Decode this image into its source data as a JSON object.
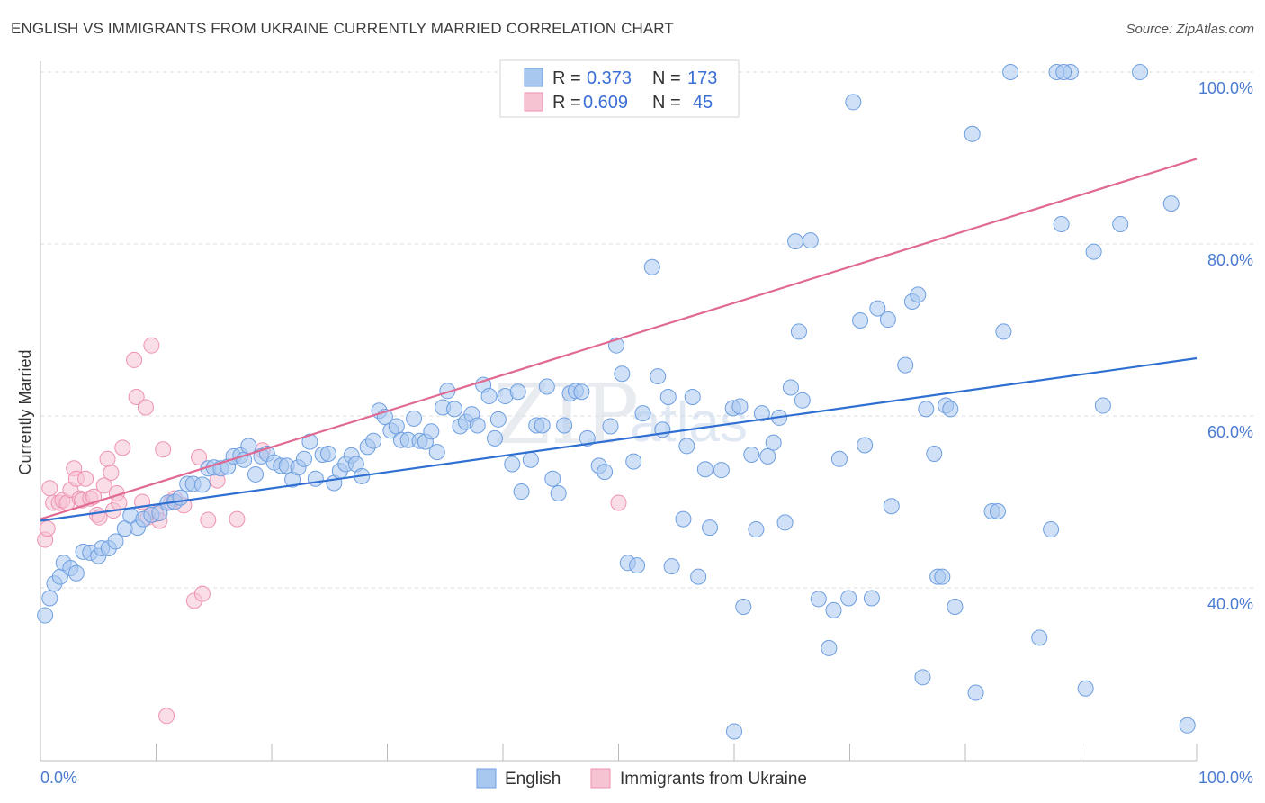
{
  "title": "ENGLISH VS IMMIGRANTS FROM UKRAINE CURRENTLY MARRIED CORRELATION CHART",
  "source": "Source: ZipAtlas.com",
  "watermark": "ZIPatlas",
  "legend_top": {
    "r_label": "R =",
    "n_label": "N =",
    "rows": [
      {
        "series": "English",
        "r": "0.373",
        "n": "173"
      },
      {
        "series": "Immigrants from Ukraine",
        "r": "0.609",
        "n": "45"
      }
    ]
  },
  "colors": {
    "english_fill": "#a9c8f0",
    "english_stroke": "#6d9ee0",
    "english_line": "#2f6fd2",
    "ukraine_fill": "#f6c3d3",
    "ukraine_stroke": "#ee92b0",
    "ukraine_line": "#e06a93",
    "grid": "#dddddd",
    "tick_label": "#4a7bd0"
  },
  "chart_data": {
    "type": "scatter",
    "title": "ENGLISH VS IMMIGRANTS FROM UKRAINE CURRENTLY MARRIED CORRELATION CHART",
    "xlabel": "",
    "ylabel": "Currently Married",
    "xlim": [
      0,
      100
    ],
    "ylim": [
      20,
      100
    ],
    "x_tick_labels": [
      {
        "value": 0,
        "label": "0.0%"
      },
      {
        "value": 100,
        "label": "100.0%"
      }
    ],
    "y_tick_labels": [
      {
        "value": 40,
        "label": "40.0%"
      },
      {
        "value": 60,
        "label": "60.0%"
      },
      {
        "value": 80,
        "label": "80.0%"
      },
      {
        "value": 100,
        "label": "100.0%"
      }
    ],
    "grid": true,
    "legend": "bottom-center",
    "series": [
      {
        "name": "English",
        "trend": {
          "x": [
            0,
            100
          ],
          "y": [
            47.8,
            66.7
          ]
        },
        "points": [
          [
            0.4,
            36.8
          ],
          [
            0.8,
            38.8
          ],
          [
            1.2,
            40.5
          ],
          [
            1.7,
            41.3
          ],
          [
            2.0,
            42.9
          ],
          [
            2.6,
            42.3
          ],
          [
            3.1,
            41.7
          ],
          [
            3.7,
            44.2
          ],
          [
            4.3,
            44.1
          ],
          [
            5.0,
            43.7
          ],
          [
            5.3,
            44.6
          ],
          [
            5.9,
            44.6
          ],
          [
            6.5,
            45.4
          ],
          [
            7.3,
            46.9
          ],
          [
            7.8,
            48.4
          ],
          [
            8.4,
            47.0
          ],
          [
            8.9,
            48.0
          ],
          [
            9.6,
            48.5
          ],
          [
            10.3,
            48.7
          ],
          [
            11.0,
            49.9
          ],
          [
            11.6,
            50.0
          ],
          [
            12.1,
            50.5
          ],
          [
            12.7,
            52.1
          ],
          [
            13.2,
            52.1
          ],
          [
            14.0,
            52.0
          ],
          [
            14.5,
            53.9
          ],
          [
            15.0,
            54.0
          ],
          [
            15.6,
            53.9
          ],
          [
            16.2,
            54.1
          ],
          [
            16.7,
            55.3
          ],
          [
            17.3,
            55.4
          ],
          [
            17.6,
            54.9
          ],
          [
            18.0,
            56.5
          ],
          [
            18.6,
            53.2
          ],
          [
            19.1,
            55.3
          ],
          [
            19.6,
            55.6
          ],
          [
            20.2,
            54.6
          ],
          [
            20.8,
            54.2
          ],
          [
            21.3,
            54.2
          ],
          [
            21.8,
            52.6
          ],
          [
            22.3,
            54.0
          ],
          [
            22.8,
            55.0
          ],
          [
            23.3,
            57.0
          ],
          [
            23.8,
            52.7
          ],
          [
            24.4,
            55.5
          ],
          [
            24.9,
            55.6
          ],
          [
            25.4,
            52.2
          ],
          [
            25.9,
            53.6
          ],
          [
            26.4,
            54.4
          ],
          [
            26.9,
            55.4
          ],
          [
            27.3,
            54.4
          ],
          [
            27.8,
            53.0
          ],
          [
            28.3,
            56.4
          ],
          [
            28.8,
            57.1
          ],
          [
            29.3,
            60.6
          ],
          [
            29.8,
            59.9
          ],
          [
            30.3,
            58.3
          ],
          [
            30.8,
            58.8
          ],
          [
            31.2,
            57.2
          ],
          [
            31.8,
            57.2
          ],
          [
            32.3,
            59.7
          ],
          [
            32.8,
            57.1
          ],
          [
            33.3,
            57.0
          ],
          [
            33.8,
            58.2
          ],
          [
            34.3,
            55.8
          ],
          [
            34.8,
            61.0
          ],
          [
            35.2,
            62.9
          ],
          [
            35.8,
            60.8
          ],
          [
            36.3,
            58.8
          ],
          [
            36.8,
            59.3
          ],
          [
            37.3,
            60.2
          ],
          [
            37.8,
            58.9
          ],
          [
            38.3,
            63.6
          ],
          [
            38.8,
            62.3
          ],
          [
            39.3,
            57.4
          ],
          [
            39.6,
            59.6
          ],
          [
            40.2,
            62.3
          ],
          [
            40.8,
            54.4
          ],
          [
            41.3,
            62.8
          ],
          [
            41.6,
            51.2
          ],
          [
            42.4,
            54.9
          ],
          [
            42.9,
            58.9
          ],
          [
            43.4,
            58.9
          ],
          [
            43.8,
            63.4
          ],
          [
            44.3,
            52.7
          ],
          [
            44.8,
            51.0
          ],
          [
            45.3,
            58.9
          ],
          [
            45.8,
            62.6
          ],
          [
            46.3,
            62.9
          ],
          [
            46.8,
            62.8
          ],
          [
            47.3,
            57.4
          ],
          [
            48.3,
            54.2
          ],
          [
            48.8,
            53.5
          ],
          [
            49.3,
            58.8
          ],
          [
            49.8,
            68.2
          ],
          [
            50.3,
            64.9
          ],
          [
            50.8,
            42.9
          ],
          [
            51.3,
            54.7
          ],
          [
            51.6,
            42.6
          ],
          [
            52.1,
            60.3
          ],
          [
            52.9,
            77.3
          ],
          [
            53.4,
            64.6
          ],
          [
            53.8,
            58.4
          ],
          [
            54.3,
            62.2
          ],
          [
            54.6,
            42.5
          ],
          [
            55.6,
            48.0
          ],
          [
            55.9,
            56.5
          ],
          [
            56.4,
            62.2
          ],
          [
            56.9,
            41.3
          ],
          [
            57.5,
            53.8
          ],
          [
            57.9,
            47.0
          ],
          [
            58.9,
            53.7
          ],
          [
            59.9,
            60.9
          ],
          [
            60.5,
            61.1
          ],
          [
            60.8,
            37.8
          ],
          [
            61.5,
            55.5
          ],
          [
            61.9,
            46.8
          ],
          [
            62.4,
            60.3
          ],
          [
            62.9,
            55.3
          ],
          [
            63.4,
            56.9
          ],
          [
            63.9,
            59.8
          ],
          [
            64.4,
            47.6
          ],
          [
            64.9,
            63.3
          ],
          [
            65.3,
            80.3
          ],
          [
            65.6,
            69.8
          ],
          [
            65.9,
            61.8
          ],
          [
            66.6,
            80.4
          ],
          [
            67.3,
            38.7
          ],
          [
            68.2,
            33.0
          ],
          [
            68.6,
            37.4
          ],
          [
            69.1,
            55.0
          ],
          [
            69.9,
            38.8
          ],
          [
            70.3,
            96.5
          ],
          [
            70.9,
            71.1
          ],
          [
            71.3,
            56.6
          ],
          [
            71.9,
            38.8
          ],
          [
            72.4,
            72.5
          ],
          [
            73.3,
            71.2
          ],
          [
            73.6,
            49.5
          ],
          [
            74.8,
            65.9
          ],
          [
            75.4,
            73.3
          ],
          [
            75.9,
            74.1
          ],
          [
            76.3,
            29.6
          ],
          [
            76.6,
            60.8
          ],
          [
            77.3,
            55.6
          ],
          [
            77.6,
            41.3
          ],
          [
            78.0,
            41.3
          ],
          [
            78.3,
            61.2
          ],
          [
            78.7,
            60.8
          ],
          [
            79.1,
            37.8
          ],
          [
            80.6,
            92.8
          ],
          [
            80.9,
            27.8
          ],
          [
            82.3,
            48.9
          ],
          [
            82.8,
            48.9
          ],
          [
            83.3,
            69.8
          ],
          [
            83.9,
            100.0
          ],
          [
            86.4,
            34.2
          ],
          [
            87.4,
            46.8
          ],
          [
            87.9,
            100.0
          ],
          [
            88.3,
            82.3
          ],
          [
            89.1,
            100.0
          ],
          [
            90.4,
            28.3
          ],
          [
            91.1,
            79.1
          ],
          [
            91.9,
            61.2
          ],
          [
            93.4,
            82.3
          ],
          [
            95.1,
            100.0
          ],
          [
            97.8,
            84.7
          ],
          [
            99.2,
            24.0
          ],
          [
            60.0,
            23.3
          ],
          [
            88.5,
            100.0
          ]
        ]
      },
      {
        "name": "Immigrants from Ukraine",
        "trend": {
          "x": [
            0,
            100
          ],
          "y": [
            48.0,
            89.9
          ]
        },
        "points": [
          [
            0.4,
            45.6
          ],
          [
            0.6,
            46.9
          ],
          [
            0.8,
            51.6
          ],
          [
            1.1,
            49.9
          ],
          [
            1.6,
            49.9
          ],
          [
            1.9,
            50.2
          ],
          [
            2.3,
            49.9
          ],
          [
            2.6,
            51.4
          ],
          [
            2.9,
            53.9
          ],
          [
            3.1,
            52.7
          ],
          [
            3.4,
            50.4
          ],
          [
            3.6,
            50.2
          ],
          [
            3.9,
            52.7
          ],
          [
            4.3,
            50.4
          ],
          [
            4.6,
            50.6
          ],
          [
            4.9,
            48.5
          ],
          [
            5.1,
            48.2
          ],
          [
            5.5,
            51.9
          ],
          [
            5.8,
            55.0
          ],
          [
            6.1,
            53.4
          ],
          [
            6.3,
            49.0
          ],
          [
            6.6,
            51.0
          ],
          [
            6.8,
            49.9
          ],
          [
            7.1,
            56.3
          ],
          [
            8.1,
            66.5
          ],
          [
            8.3,
            62.2
          ],
          [
            8.8,
            50.0
          ],
          [
            9.1,
            61.0
          ],
          [
            9.3,
            48.2
          ],
          [
            9.6,
            68.2
          ],
          [
            10.0,
            48.6
          ],
          [
            10.3,
            47.8
          ],
          [
            10.6,
            56.1
          ],
          [
            10.9,
            25.1
          ],
          [
            11.3,
            50.0
          ],
          [
            11.6,
            50.4
          ],
          [
            12.4,
            49.6
          ],
          [
            13.3,
            38.5
          ],
          [
            13.7,
            55.2
          ],
          [
            14.0,
            39.3
          ],
          [
            14.5,
            47.9
          ],
          [
            15.3,
            52.5
          ],
          [
            17.0,
            48.0
          ],
          [
            19.2,
            56.0
          ],
          [
            50.0,
            49.9
          ]
        ]
      }
    ]
  },
  "legend_bottom": {
    "items": [
      {
        "label": "English"
      },
      {
        "label": "Immigrants from Ukraine"
      }
    ]
  }
}
